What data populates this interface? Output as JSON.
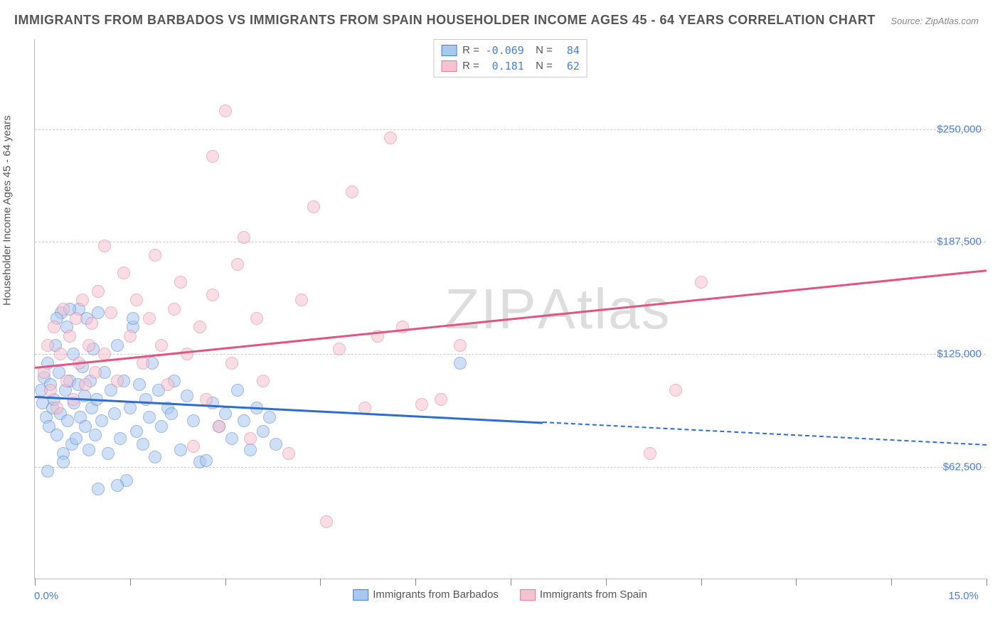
{
  "title": "IMMIGRANTS FROM BARBADOS VS IMMIGRANTS FROM SPAIN HOUSEHOLDER INCOME AGES 45 - 64 YEARS CORRELATION CHART",
  "source": "Source: ZipAtlas.com",
  "watermark": "ZIPAtlas",
  "y_axis_title": "Householder Income Ages 45 - 64 years",
  "chart": {
    "type": "scatter",
    "xlim": [
      0,
      15
    ],
    "ylim": [
      0,
      300000
    ],
    "x_min_label": "0.0%",
    "x_max_label": "15.0%",
    "xticks_pct": [
      0,
      1.5,
      3.0,
      4.5,
      6.0,
      7.5,
      9.0,
      10.5,
      12.0,
      13.5,
      15.0
    ],
    "ygrid": [
      {
        "value": 62500,
        "label": "$62,500"
      },
      {
        "value": 125000,
        "label": "$125,000"
      },
      {
        "value": 187500,
        "label": "$187,500"
      },
      {
        "value": 250000,
        "label": "$250,000"
      }
    ],
    "background_color": "#ffffff",
    "grid_color": "#cccccc",
    "axis_color": "#bbbbbb",
    "text_color": "#555555",
    "value_color": "#4a7fd6",
    "point_radius": 9,
    "point_opacity": 0.55,
    "series": [
      {
        "name": "Immigrants from Barbados",
        "color_fill": "#a9c8f0",
        "color_stroke": "#4a7fd6",
        "R": "-0.069",
        "N": "84",
        "trend": {
          "y_at_xmin": 102000,
          "y_at_xmax": 75000,
          "solid_until_x": 8.0,
          "color": "#2e6cd1",
          "width": 3
        },
        "points": [
          [
            0.1,
            105000
          ],
          [
            0.12,
            98000
          ],
          [
            0.15,
            112000
          ],
          [
            0.18,
            90000
          ],
          [
            0.2,
            120000
          ],
          [
            0.22,
            85000
          ],
          [
            0.25,
            108000
          ],
          [
            0.28,
            95000
          ],
          [
            0.3,
            100000
          ],
          [
            0.32,
            130000
          ],
          [
            0.35,
            80000
          ],
          [
            0.38,
            115000
          ],
          [
            0.4,
            92000
          ],
          [
            0.42,
            148000
          ],
          [
            0.45,
            70000
          ],
          [
            0.48,
            105000
          ],
          [
            0.5,
            140000
          ],
          [
            0.52,
            88000
          ],
          [
            0.55,
            110000
          ],
          [
            0.58,
            75000
          ],
          [
            0.6,
            125000
          ],
          [
            0.62,
            98000
          ],
          [
            0.65,
            78000
          ],
          [
            0.68,
            108000
          ],
          [
            0.7,
            150000
          ],
          [
            0.72,
            90000
          ],
          [
            0.75,
            118000
          ],
          [
            0.78,
            102000
          ],
          [
            0.8,
            85000
          ],
          [
            0.82,
            145000
          ],
          [
            0.85,
            72000
          ],
          [
            0.88,
            110000
          ],
          [
            0.9,
            95000
          ],
          [
            0.92,
            128000
          ],
          [
            0.95,
            80000
          ],
          [
            0.98,
            100000
          ],
          [
            1.0,
            148000
          ],
          [
            1.05,
            88000
          ],
          [
            1.1,
            115000
          ],
          [
            1.15,
            70000
          ],
          [
            1.2,
            105000
          ],
          [
            1.25,
            92000
          ],
          [
            1.3,
            130000
          ],
          [
            1.35,
            78000
          ],
          [
            1.4,
            110000
          ],
          [
            1.45,
            55000
          ],
          [
            1.5,
            95000
          ],
          [
            1.55,
            140000
          ],
          [
            1.6,
            82000
          ],
          [
            1.65,
            108000
          ],
          [
            1.7,
            75000
          ],
          [
            1.75,
            100000
          ],
          [
            1.8,
            90000
          ],
          [
            1.85,
            120000
          ],
          [
            1.9,
            68000
          ],
          [
            1.95,
            105000
          ],
          [
            2.0,
            85000
          ],
          [
            2.1,
            95000
          ],
          [
            2.2,
            110000
          ],
          [
            2.3,
            72000
          ],
          [
            2.4,
            102000
          ],
          [
            2.5,
            88000
          ],
          [
            2.6,
            65000
          ],
          [
            2.7,
            66000
          ],
          [
            2.8,
            98000
          ],
          [
            2.9,
            85000
          ],
          [
            3.0,
            92000
          ],
          [
            3.1,
            78000
          ],
          [
            3.2,
            105000
          ],
          [
            3.3,
            88000
          ],
          [
            3.4,
            72000
          ],
          [
            3.5,
            95000
          ],
          [
            3.6,
            82000
          ],
          [
            3.7,
            90000
          ],
          [
            3.8,
            75000
          ],
          [
            1.0,
            50000
          ],
          [
            1.3,
            52000
          ],
          [
            1.55,
            145000
          ],
          [
            0.55,
            150000
          ],
          [
            0.2,
            60000
          ],
          [
            0.45,
            65000
          ],
          [
            2.15,
            92000
          ],
          [
            0.35,
            145000
          ],
          [
            6.7,
            120000
          ]
        ]
      },
      {
        "name": "Immigrants from Spain",
        "color_fill": "#f5c2cf",
        "color_stroke": "#e77a9a",
        "R": "0.181",
        "N": "62",
        "trend": {
          "y_at_xmin": 118000,
          "y_at_xmax": 172000,
          "solid_until_x": 15.0,
          "color": "#e25582",
          "width": 3
        },
        "points": [
          [
            0.15,
            115000
          ],
          [
            0.2,
            130000
          ],
          [
            0.25,
            105000
          ],
          [
            0.3,
            140000
          ],
          [
            0.35,
            95000
          ],
          [
            0.4,
            125000
          ],
          [
            0.45,
            150000
          ],
          [
            0.5,
            110000
          ],
          [
            0.55,
            135000
          ],
          [
            0.6,
            100000
          ],
          [
            0.65,
            145000
          ],
          [
            0.7,
            120000
          ],
          [
            0.75,
            155000
          ],
          [
            0.8,
            108000
          ],
          [
            0.85,
            130000
          ],
          [
            0.9,
            142000
          ],
          [
            0.95,
            115000
          ],
          [
            1.0,
            160000
          ],
          [
            1.1,
            125000
          ],
          [
            1.2,
            148000
          ],
          [
            1.3,
            110000
          ],
          [
            1.4,
            170000
          ],
          [
            1.5,
            135000
          ],
          [
            1.6,
            155000
          ],
          [
            1.7,
            120000
          ],
          [
            1.8,
            145000
          ],
          [
            1.9,
            180000
          ],
          [
            2.0,
            130000
          ],
          [
            2.1,
            108000
          ],
          [
            2.2,
            150000
          ],
          [
            2.3,
            165000
          ],
          [
            2.4,
            125000
          ],
          [
            2.5,
            74000
          ],
          [
            2.6,
            140000
          ],
          [
            2.7,
            100000
          ],
          [
            2.8,
            158000
          ],
          [
            2.9,
            85000
          ],
          [
            3.0,
            260000
          ],
          [
            3.1,
            120000
          ],
          [
            3.2,
            175000
          ],
          [
            3.3,
            190000
          ],
          [
            3.4,
            78000
          ],
          [
            3.5,
            145000
          ],
          [
            3.6,
            110000
          ],
          [
            2.8,
            235000
          ],
          [
            4.0,
            70000
          ],
          [
            4.2,
            155000
          ],
          [
            4.4,
            207000
          ],
          [
            4.6,
            32000
          ],
          [
            4.8,
            128000
          ],
          [
            5.0,
            215000
          ],
          [
            5.2,
            95000
          ],
          [
            5.4,
            135000
          ],
          [
            5.6,
            245000
          ],
          [
            5.8,
            140000
          ],
          [
            6.1,
            97000
          ],
          [
            6.4,
            100000
          ],
          [
            6.7,
            130000
          ],
          [
            9.7,
            70000
          ],
          [
            10.1,
            105000
          ],
          [
            10.5,
            165000
          ],
          [
            1.1,
            185000
          ]
        ]
      }
    ]
  }
}
